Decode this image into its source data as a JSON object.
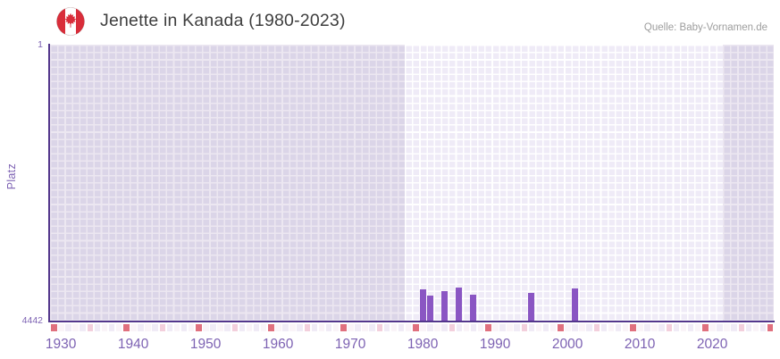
{
  "header": {
    "title": "Jenette in Kanada (1980-2023)",
    "source": "Quelle: Baby-Vornamen.de",
    "flag_icon": "canada-flag-icon"
  },
  "chart_data": {
    "type": "bar",
    "title": "Jenette in Kanada (1980-2023)",
    "xlabel": "",
    "ylabel": "Platz",
    "y_axis": {
      "min": 1,
      "max": 4442,
      "inverted": true,
      "top_tick_label": "1",
      "bottom_tick_label": "4442"
    },
    "x_axis": {
      "start_year": 1929,
      "end_year": 2028,
      "tick_labels": [
        "1930",
        "1940",
        "1950",
        "1960",
        "1970",
        "1980",
        "1990",
        "2000",
        "2010",
        "2020"
      ]
    },
    "series": [
      {
        "year": 1980,
        "rank": 3920
      },
      {
        "year": 1981,
        "rank": 4020
      },
      {
        "year": 1983,
        "rank": 3960
      },
      {
        "year": 1985,
        "rank": 3900
      },
      {
        "year": 1987,
        "rank": 4010
      },
      {
        "year": 1995,
        "rank": 3980
      },
      {
        "year": 2001,
        "rank": 3910
      }
    ],
    "highlight_band": {
      "from_year": 1978,
      "to_year": 2021
    },
    "grid": true,
    "legend": "none",
    "colors": {
      "bar": "#8a56c3",
      "axis_line": "#53378c",
      "tick_text": "#7d62b3",
      "title_text": "#3e3e3e",
      "source_text": "#9d9d9d",
      "zone_default_cell": "#dbd5e8",
      "zone_default_gutter": "#ece7f1",
      "zone_highlight_cell": "#efebf7",
      "zone_highlight_gutter": "#ffffff",
      "flag_red": "#d92d3a"
    }
  },
  "heat_strip": {
    "cell_count": 100,
    "red_every": 10,
    "pink_offset": 5,
    "last_cell_red": true,
    "colors": {
      "red": "#e0707e",
      "pink": "#f3cfdc",
      "pale_even": "#f0ebf6",
      "pale_odd": "#faf4f8"
    }
  }
}
